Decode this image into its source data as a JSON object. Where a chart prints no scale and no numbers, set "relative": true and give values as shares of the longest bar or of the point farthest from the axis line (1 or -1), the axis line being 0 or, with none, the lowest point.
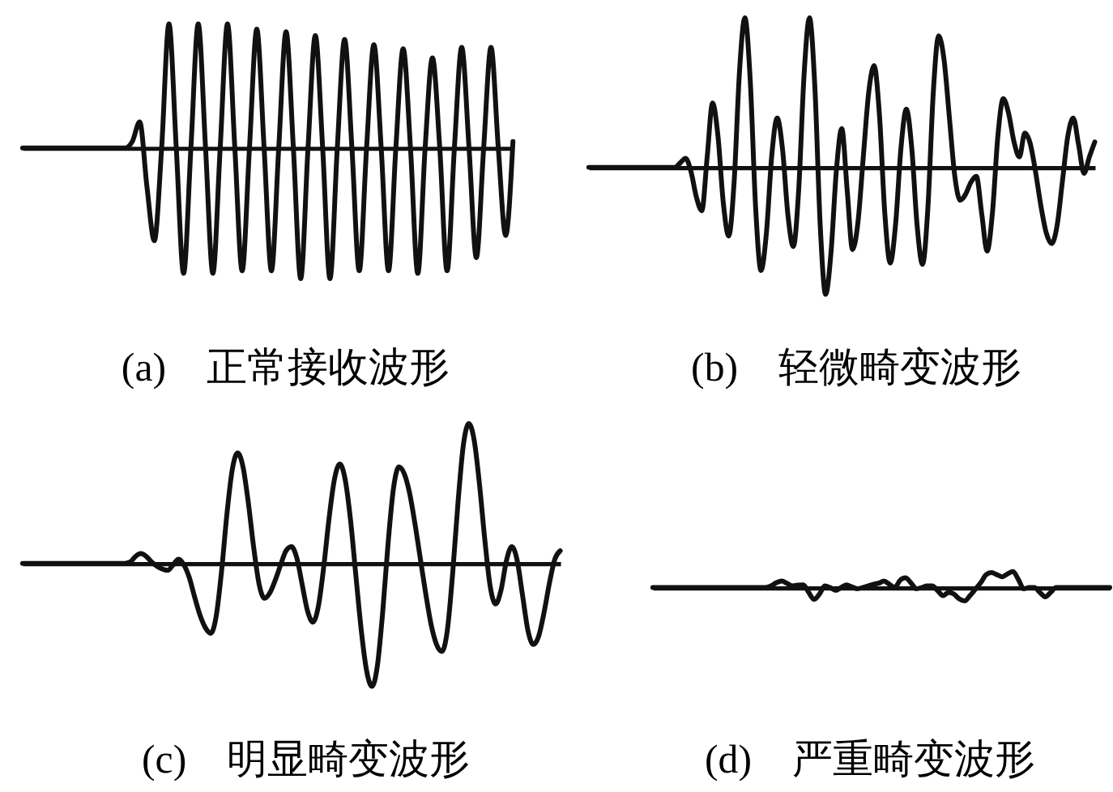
{
  "chart_data": [
    {
      "type": "line",
      "relative": true,
      "title": "(a)　正常接收波形",
      "color": "#111111",
      "categories": [
        null,
        null,
        null,
        null,
        null,
        null,
        null,
        null,
        null,
        null,
        null,
        null,
        null,
        null,
        null,
        null,
        null,
        null,
        null,
        null,
        null,
        null,
        null,
        null,
        null,
        null,
        null,
        null,
        null,
        null,
        null,
        null,
        null,
        null,
        null,
        null,
        null,
        null,
        null,
        null,
        null,
        null,
        null,
        null,
        null,
        null,
        null,
        null,
        null,
        null,
        null,
        null,
        null,
        null,
        null,
        null,
        null,
        null,
        null,
        null,
        null,
        null,
        null,
        null,
        null,
        null,
        null,
        null
      ],
      "values": [
        0,
        0,
        0,
        0,
        0,
        0,
        0,
        0,
        0,
        0,
        0,
        0,
        0,
        0,
        0,
        0.05,
        0.2,
        -0.3,
        -0.71,
        0,
        0.95,
        0,
        -0.96,
        0,
        0.95,
        0,
        -0.96,
        0,
        0.95,
        0,
        -0.94,
        0,
        0.91,
        0,
        -0.94,
        0,
        0.89,
        0,
        -1,
        0,
        0.86,
        0,
        -1,
        0,
        0.83,
        0,
        -0.94,
        0,
        0.79,
        0,
        -0.94,
        0,
        0.76,
        0,
        -0.96,
        0,
        0.69,
        0,
        -0.94,
        0,
        0.77,
        0,
        -0.84,
        0,
        0.77,
        0,
        -0.67,
        0.05
      ]
    },
    {
      "type": "line",
      "relative": true,
      "title": "(b)　轻微畸变波形",
      "color": "#111111",
      "categories": [
        null,
        null,
        null,
        null,
        null,
        null,
        null,
        null,
        null,
        null,
        null,
        null,
        null,
        null,
        null,
        null,
        null,
        null,
        null,
        null,
        null,
        null,
        null,
        null,
        null,
        null,
        null,
        null,
        null,
        null,
        null,
        null,
        null,
        null,
        null,
        null,
        null,
        null,
        null,
        null,
        null,
        null,
        null,
        null,
        null,
        null,
        null,
        null,
        null,
        null,
        null,
        null,
        null,
        null,
        null,
        null,
        null,
        null,
        null,
        null,
        null,
        null,
        null,
        null,
        null,
        null,
        null,
        null,
        null,
        null,
        null,
        null,
        null,
        null,
        null,
        null,
        null,
        null,
        null,
        null,
        null,
        null,
        null,
        null,
        null,
        null,
        null,
        null,
        null,
        null,
        null,
        null,
        null,
        null,
        null
      ],
      "values": [
        0,
        0,
        0,
        0,
        0,
        0,
        0,
        0,
        0,
        0,
        0,
        0,
        0,
        0,
        0,
        0,
        0,
        0.03,
        0.06,
        -0.03,
        -0.2,
        -0.29,
        0.07,
        0.43,
        0.21,
        -0.24,
        -0.46,
        -0.1,
        0.64,
        1,
        0.58,
        -0.27,
        -0.69,
        -0.44,
        0.08,
        0.33,
        0.12,
        -0.32,
        -0.53,
        -0.15,
        0.62,
        1,
        0.54,
        -0.39,
        -0.85,
        -0.57,
        -0.02,
        0.26,
        -0.15,
        -0.55,
        -0.37,
        0.07,
        0.5,
        0.68,
        0.35,
        -0.31,
        -0.64,
        -0.38,
        0.13,
        0.39,
        0.13,
        -0.39,
        -0.65,
        -0.27,
        0.5,
        0.88,
        0.72,
        0.33,
        -0.06,
        -0.22,
        -0.18,
        -0.1,
        -0.06,
        -0.31,
        -0.56,
        -0.3,
        0.21,
        0.46,
        0.36,
        0.17,
        0.07,
        0.23,
        0.16,
        -0.03,
        -0.26,
        -0.44,
        -0.51,
        -0.39,
        -0.09,
        0.21,
        0.33,
        0.15,
        -0.04,
        0.07,
        0.17
      ]
    },
    {
      "type": "line",
      "relative": true,
      "title": "(c)　明显畸变波形",
      "color": "#111111",
      "categories": [
        null,
        null,
        null,
        null,
        null,
        null,
        null,
        null,
        null,
        null,
        null,
        null,
        null,
        null,
        null,
        null,
        null,
        null,
        null,
        null,
        null,
        null,
        null,
        null,
        null,
        null,
        null,
        null,
        null,
        null,
        null,
        null,
        null,
        null,
        null,
        null,
        null,
        null,
        null,
        null,
        null,
        null,
        null,
        null,
        null,
        null,
        null,
        null,
        null,
        null,
        null,
        null,
        null,
        null,
        null,
        null,
        null,
        null,
        null,
        null,
        null,
        null,
        null,
        null,
        null,
        null,
        null,
        null,
        null,
        null,
        null,
        null,
        null,
        null,
        null,
        null,
        null,
        null,
        null,
        null,
        null,
        null,
        null,
        null,
        null,
        null,
        null,
        null,
        null,
        null,
        null,
        null,
        null,
        null,
        null,
        null,
        null,
        null,
        null,
        null,
        null
      ],
      "values": [
        0,
        0,
        0,
        0,
        0,
        0,
        0,
        0,
        0,
        0,
        0,
        0,
        0,
        0,
        0,
        0,
        0,
        0,
        0,
        0,
        0.01,
        0.05,
        0.07,
        0.05,
        0.01,
        -0.02,
        -0.04,
        -0.05,
        -0.01,
        0.03,
        -0.01,
        -0.1,
        -0.24,
        -0.37,
        -0.46,
        -0.5,
        -0.38,
        -0.06,
        0.35,
        0.67,
        0.79,
        0.69,
        0.43,
        0.11,
        -0.15,
        -0.25,
        -0.21,
        -0.12,
        -0.01,
        0.09,
        0.12,
        0.04,
        -0.15,
        -0.34,
        -0.42,
        -0.31,
        -0.03,
        0.32,
        0.6,
        0.71,
        0.6,
        0.31,
        -0.09,
        -0.48,
        -0.77,
        -0.88,
        -0.73,
        -0.34,
        0.15,
        0.54,
        0.69,
        0.64,
        0.5,
        0.28,
        0.03,
        -0.22,
        -0.44,
        -0.58,
        -0.63,
        -0.48,
        -0.07,
        0.44,
        0.85,
        1,
        0.88,
        0.56,
        0.16,
        -0.17,
        -0.29,
        -0.19,
        0.02,
        0.12,
        0.02,
        -0.23,
        -0.48,
        -0.58,
        -0.52,
        -0.35,
        -0.14,
        0.03,
        0.09
      ]
    },
    {
      "type": "line",
      "relative": true,
      "title": "(d)　严重畸变波形",
      "color": "#111111",
      "categories": [
        null,
        null,
        null,
        null,
        null,
        null,
        null,
        null,
        null,
        null,
        null,
        null,
        null,
        null,
        null,
        null,
        null,
        null,
        null,
        null,
        null,
        null,
        null,
        null,
        null,
        null,
        null,
        null,
        null,
        null,
        null,
        null,
        null,
        null,
        null,
        null,
        null,
        null,
        null,
        null,
        null,
        null,
        null,
        null,
        null,
        null,
        null,
        null,
        null,
        null,
        null,
        null,
        null,
        null,
        null,
        null,
        null,
        null,
        null,
        null,
        null,
        null,
        null,
        null,
        null,
        null,
        null,
        null,
        null,
        null,
        null,
        null,
        null,
        null,
        null,
        null,
        null,
        null,
        null,
        null,
        null,
        null,
        null,
        null,
        null,
        null
      ],
      "values": [
        0,
        0,
        0,
        0,
        0,
        0,
        0,
        0,
        0,
        0,
        0,
        0,
        0,
        0,
        0,
        0,
        0,
        0,
        0,
        0,
        0,
        0,
        0.1,
        0.3,
        0.4,
        0.25,
        0.1,
        0.15,
        0.17,
        -0.3,
        -0.73,
        -0.4,
        0.1,
        0,
        -0.17,
        0,
        0.17,
        0.05,
        -0.07,
        0,
        0.1,
        0.2,
        0.27,
        0.4,
        0.2,
        0,
        0.45,
        0.6,
        0.3,
        -0.07,
        0,
        0.1,
        0.1,
        -0.2,
        -0.5,
        -0.3,
        -0.4,
        -0.7,
        -0.83,
        -0.5,
        -0.1,
        0.3,
        0.8,
        0.93,
        0.8,
        0.67,
        0.85,
        1,
        0.5,
        -0.07,
        0,
        0,
        -0.3,
        -0.57,
        -0.3,
        0,
        0,
        0,
        0,
        0,
        0,
        0,
        0,
        0,
        0,
        0
      ]
    }
  ]
}
